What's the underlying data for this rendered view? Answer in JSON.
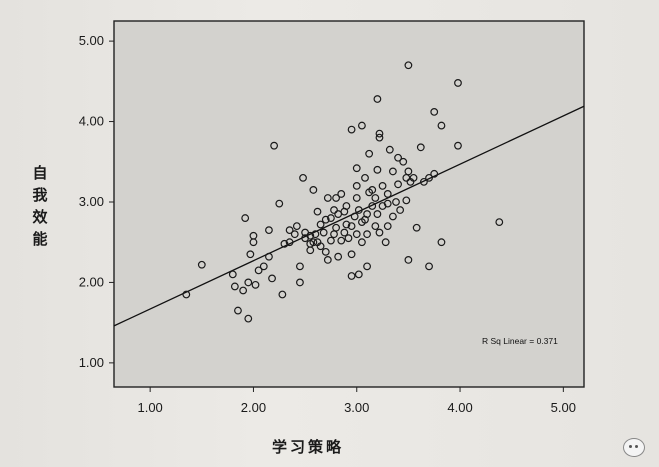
{
  "chart_data": {
    "type": "scatter",
    "xlabel": "学习策略",
    "ylabel": "自我效能",
    "xlim": [
      0.65,
      5.2
    ],
    "ylim": [
      0.7,
      5.25
    ],
    "xticks": [
      "1.00",
      "2.00",
      "3.00",
      "4.00",
      "5.00"
    ],
    "yticks": [
      "1.00",
      "2.00",
      "3.00",
      "4.00",
      "5.00"
    ],
    "grid": false,
    "fit_line": {
      "intercept": 1.07,
      "slope": 0.6,
      "x_range": [
        0.65,
        5.2
      ]
    },
    "annotation": "R Sq Linear = 0.371",
    "points": [
      [
        1.35,
        1.85
      ],
      [
        1.5,
        2.22
      ],
      [
        1.8,
        2.1
      ],
      [
        1.82,
        1.95
      ],
      [
        1.85,
        1.65
      ],
      [
        1.92,
        2.8
      ],
      [
        1.9,
        1.9
      ],
      [
        1.95,
        1.55
      ],
      [
        1.95,
        2.0
      ],
      [
        1.97,
        2.35
      ],
      [
        2.0,
        2.5
      ],
      [
        2.0,
        2.58
      ],
      [
        2.02,
        1.97
      ],
      [
        2.05,
        2.15
      ],
      [
        2.1,
        2.2
      ],
      [
        2.15,
        2.32
      ],
      [
        2.15,
        2.65
      ],
      [
        2.18,
        2.05
      ],
      [
        2.2,
        3.7
      ],
      [
        2.25,
        2.98
      ],
      [
        2.28,
        1.85
      ],
      [
        2.3,
        2.48
      ],
      [
        2.35,
        2.65
      ],
      [
        2.4,
        2.6
      ],
      [
        2.45,
        2.2
      ],
      [
        2.45,
        2.0
      ],
      [
        2.5,
        2.55
      ],
      [
        2.5,
        2.62
      ],
      [
        2.55,
        2.48
      ],
      [
        2.55,
        2.58
      ],
      [
        2.58,
        2.5
      ],
      [
        2.58,
        3.15
      ],
      [
        2.6,
        2.6
      ],
      [
        2.62,
        2.5
      ],
      [
        2.65,
        2.72
      ],
      [
        2.68,
        2.62
      ],
      [
        2.7,
        2.78
      ],
      [
        2.7,
        2.38
      ],
      [
        2.72,
        2.28
      ],
      [
        2.72,
        3.05
      ],
      [
        2.75,
        2.52
      ],
      [
        2.75,
        2.8
      ],
      [
        2.78,
        2.6
      ],
      [
        2.8,
        2.68
      ],
      [
        2.8,
        3.05
      ],
      [
        2.82,
        2.32
      ],
      [
        2.82,
        2.85
      ],
      [
        2.85,
        2.52
      ],
      [
        2.88,
        2.88
      ],
      [
        2.88,
        2.62
      ],
      [
        2.9,
        2.72
      ],
      [
        2.9,
        2.95
      ],
      [
        2.92,
        2.55
      ],
      [
        2.95,
        2.7
      ],
      [
        2.95,
        2.35
      ],
      [
        2.95,
        2.08
      ],
      [
        2.98,
        2.82
      ],
      [
        3.0,
        2.6
      ],
      [
        3.0,
        3.05
      ],
      [
        3.0,
        3.2
      ],
      [
        3.02,
        2.9
      ],
      [
        3.05,
        2.75
      ],
      [
        3.05,
        2.5
      ],
      [
        3.08,
        3.3
      ],
      [
        3.1,
        2.85
      ],
      [
        3.1,
        2.6
      ],
      [
        3.1,
        2.2
      ],
      [
        3.12,
        3.6
      ],
      [
        3.15,
        2.95
      ],
      [
        3.15,
        3.15
      ],
      [
        3.18,
        2.7
      ],
      [
        3.18,
        3.05
      ],
      [
        3.2,
        3.4
      ],
      [
        3.2,
        2.85
      ],
      [
        3.22,
        2.62
      ],
      [
        3.22,
        3.8
      ],
      [
        3.25,
        3.2
      ],
      [
        3.25,
        2.95
      ],
      [
        3.28,
        2.5
      ],
      [
        3.3,
        2.7
      ],
      [
        3.3,
        3.1
      ],
      [
        3.32,
        3.65
      ],
      [
        3.35,
        2.82
      ],
      [
        3.38,
        3.0
      ],
      [
        3.4,
        3.22
      ],
      [
        3.42,
        2.9
      ],
      [
        3.45,
        3.5
      ],
      [
        3.48,
        3.3
      ],
      [
        3.5,
        3.38
      ],
      [
        3.52,
        3.25
      ],
      [
        3.55,
        3.3
      ],
      [
        3.58,
        2.68
      ],
      [
        3.62,
        3.68
      ],
      [
        3.65,
        3.25
      ],
      [
        3.7,
        3.3
      ],
      [
        3.75,
        3.35
      ],
      [
        3.75,
        4.12
      ],
      [
        3.82,
        3.95
      ],
      [
        3.82,
        2.5
      ],
      [
        3.7,
        2.2
      ],
      [
        3.5,
        4.7
      ],
      [
        3.5,
        2.28
      ],
      [
        3.98,
        4.48
      ],
      [
        3.98,
        3.7
      ],
      [
        4.38,
        2.75
      ],
      [
        3.2,
        4.28
      ],
      [
        3.22,
        3.85
      ],
      [
        3.3,
        2.98
      ],
      [
        3.05,
        3.95
      ],
      [
        3.0,
        3.42
      ],
      [
        3.4,
        3.55
      ],
      [
        2.95,
        3.9
      ],
      [
        3.02,
        2.1
      ],
      [
        2.48,
        3.3
      ],
      [
        2.85,
        3.1
      ],
      [
        2.65,
        2.45
      ],
      [
        2.78,
        2.9
      ],
      [
        3.08,
        2.78
      ],
      [
        3.35,
        3.38
      ],
      [
        2.55,
        2.4
      ],
      [
        2.42,
        2.7
      ],
      [
        2.62,
        2.88
      ],
      [
        3.12,
        3.12
      ],
      [
        3.48,
        3.02
      ],
      [
        2.35,
        2.5
      ]
    ]
  }
}
